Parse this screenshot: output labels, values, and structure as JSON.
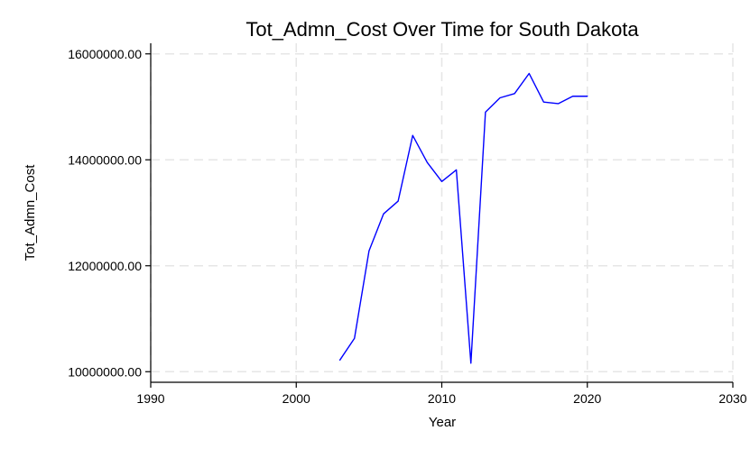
{
  "chart_data": {
    "type": "line",
    "title": "Tot_Admn_Cost Over Time for South Dakota",
    "xlabel": "Year",
    "ylabel": "Tot_Admn_Cost",
    "xlim": [
      1990,
      2030
    ],
    "ylim": [
      9800000,
      16200000
    ],
    "x_ticks": [
      1990,
      2000,
      2010,
      2020,
      2030
    ],
    "x_tick_labels": [
      "1990",
      "2000",
      "2010",
      "2020",
      "2030"
    ],
    "y_ticks": [
      10000000,
      12000000,
      14000000,
      16000000
    ],
    "y_tick_labels": [
      "10000000.00",
      "12000000.00",
      "14000000.00",
      "16000000.00"
    ],
    "grid": true,
    "legend": "none",
    "series": [
      {
        "color": "#0000ff",
        "x": [
          2003,
          2004,
          2005,
          2006,
          2007,
          2008,
          2009,
          2010,
          2011,
          2012,
          2013,
          2014,
          2015,
          2016,
          2017,
          2018,
          2019,
          2020
        ],
        "y": [
          10220000,
          10630000,
          12280000,
          12980000,
          13220000,
          14460000,
          13950000,
          13590000,
          13810000,
          10160000,
          14900000,
          15170000,
          15250000,
          15630000,
          15090000,
          15060000,
          15200000,
          15200000
        ]
      }
    ]
  }
}
